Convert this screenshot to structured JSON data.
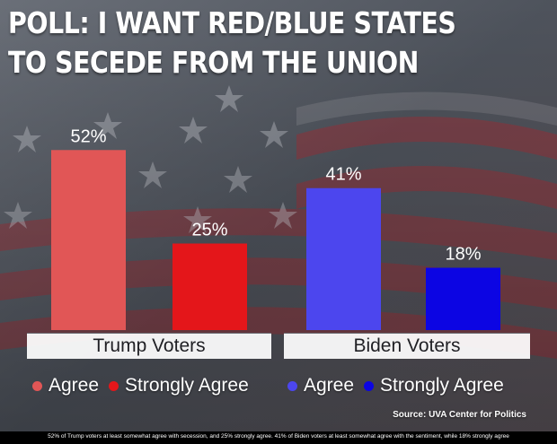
{
  "title": {
    "line1": "POLL: I WANT RED/BLUE STATES",
    "line2": "TO SECEDE FROM THE UNION"
  },
  "colors": {
    "agree_red": "#e15656",
    "strongly_red": "#e4161a",
    "agree_blue": "#4c46ee",
    "strongly_blue": "#0c05e3"
  },
  "chart_data": {
    "type": "bar",
    "categories": [
      "Trump Voters",
      "Biden Voters"
    ],
    "bars": [
      {
        "group": "Trump Voters",
        "series": "Agree",
        "value": 52,
        "label": "52%",
        "color": "#e15656"
      },
      {
        "group": "Trump Voters",
        "series": "Strongly Agree",
        "value": 25,
        "label": "25%",
        "color": "#e4161a"
      },
      {
        "group": "Biden Voters",
        "series": "Agree",
        "value": 41,
        "label": "41%",
        "color": "#4c46ee"
      },
      {
        "group": "Biden Voters",
        "series": "Strongly Agree",
        "value": 18,
        "label": "18%",
        "color": "#0c05e3"
      }
    ],
    "ylim": [
      0,
      100
    ],
    "grid": false,
    "legend_position": "bottom",
    "legend": [
      {
        "label": "Agree",
        "color": "#e15656"
      },
      {
        "label": "Strongly Agree",
        "color": "#e4161a"
      },
      {
        "label": "Agree",
        "color": "#4c46ee"
      },
      {
        "label": "Strongly Agree",
        "color": "#0c05e3"
      }
    ]
  },
  "source": "Source: UVA Center for Politics",
  "caption": "52% of Trump voters at least somewhat agree with secession, and 25% strongly agree. 41% of Biden voters at least somewhat agree with the sentiment, while 18% strongly agree"
}
